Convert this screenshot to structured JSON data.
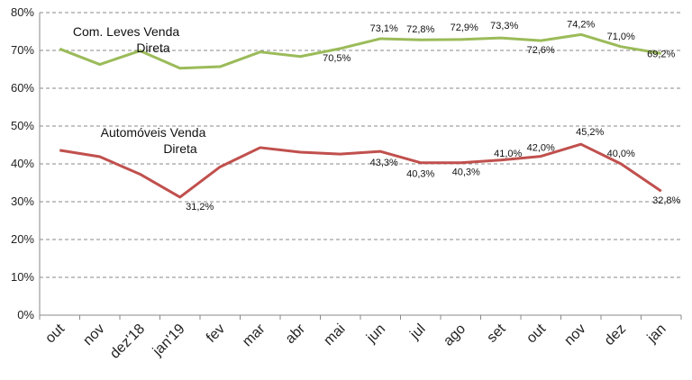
{
  "chart_data": {
    "type": "line",
    "categories": [
      "out",
      "nov",
      "dez'18",
      "jan'19",
      "fev",
      "mar",
      "abr",
      "mai",
      "jun",
      "jul",
      "ago",
      "set",
      "out",
      "nov",
      "dez",
      "jan"
    ],
    "ylim": [
      0,
      80
    ],
    "y_ticks": [
      "0%",
      "10%",
      "20%",
      "30%",
      "40%",
      "50%",
      "60%",
      "70%",
      "80%"
    ],
    "y_tick_values": [
      0,
      10,
      20,
      30,
      40,
      50,
      60,
      70,
      80
    ],
    "grid": true,
    "series": [
      {
        "name_lines": [
          "Com. Leves Venda",
          "Direta"
        ],
        "color": "#9bbb59",
        "values": [
          70.4,
          66.3,
          69.9,
          65.3,
          65.7,
          69.6,
          68.4,
          70.5,
          73.1,
          72.8,
          72.9,
          73.3,
          72.6,
          74.2,
          71.0,
          69.2
        ],
        "labels": [
          null,
          null,
          null,
          null,
          null,
          null,
          null,
          "70,5%",
          "73,1%",
          "72,8%",
          "72,9%",
          "73,3%",
          "72,6%",
          "74,2%",
          "71,0%",
          "69,2%"
        ]
      },
      {
        "name_lines": [
          "Automóveis Venda",
          "Direta"
        ],
        "color": "#c0504d",
        "values": [
          43.6,
          41.9,
          37.3,
          31.2,
          39.2,
          44.3,
          43.1,
          42.6,
          43.3,
          40.3,
          40.3,
          41.0,
          42.0,
          45.2,
          40.0,
          32.8
        ],
        "labels": [
          null,
          null,
          null,
          "31,2%",
          null,
          null,
          null,
          null,
          "43,3%",
          "40,3%",
          "40,3%",
          "41,0%",
          "42,0%",
          "45,2%",
          "40,0%",
          "32,8%"
        ]
      }
    ]
  }
}
